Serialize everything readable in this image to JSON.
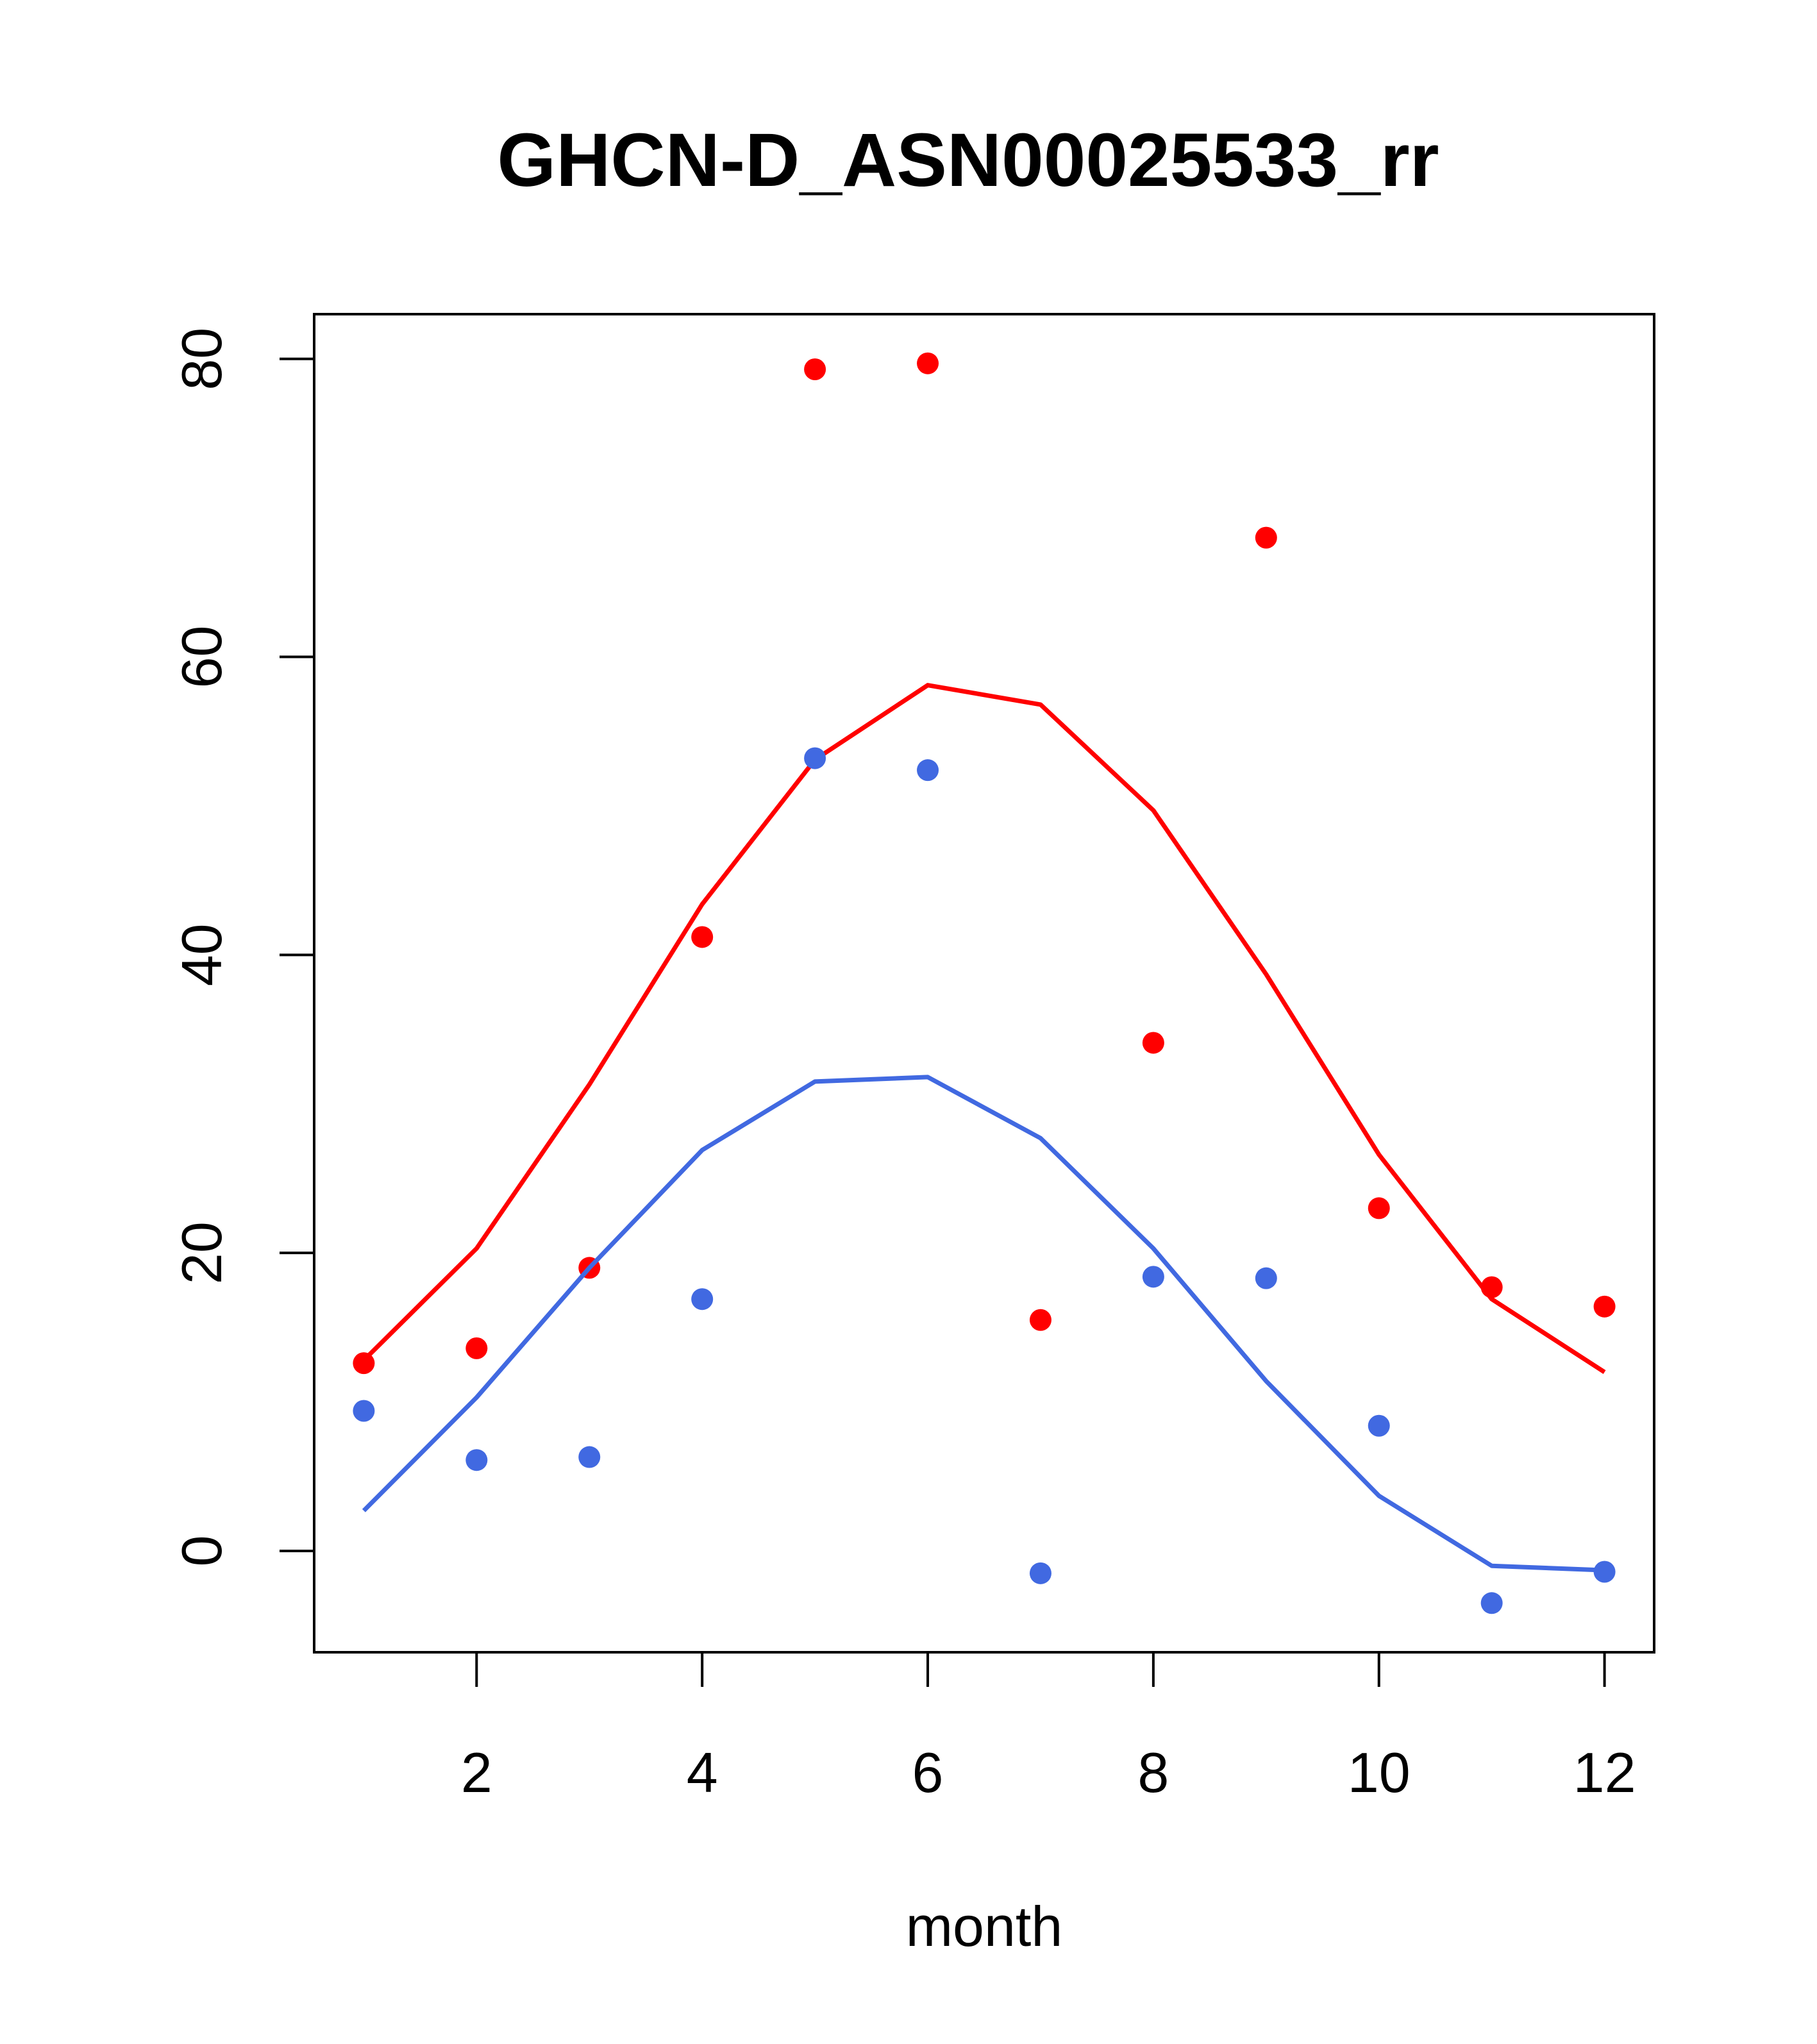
{
  "chart_data": {
    "type": "scatter",
    "title": "GHCN-D_ASN00025533_rr",
    "xlabel": "month",
    "ylabel": "",
    "xlim": [
      0.56,
      12.44
    ],
    "ylim": [
      -6.8,
      83
    ],
    "x_ticks": [
      2,
      4,
      6,
      8,
      10,
      12
    ],
    "y_ticks": [
      0,
      20,
      40,
      60,
      80
    ],
    "grid": false,
    "legend": "none",
    "x": [
      1,
      2,
      3,
      4,
      5,
      6,
      7,
      8,
      9,
      10,
      11,
      12
    ],
    "series": [
      {
        "color": "#ff0000",
        "points": [
          12.6,
          13.6,
          19.0,
          41.2,
          79.3,
          79.7,
          15.5,
          34.1,
          68.0,
          23.0,
          17.7,
          16.4
        ],
        "line": [
          12.8,
          20.3,
          31.3,
          43.4,
          53.1,
          58.1,
          56.8,
          49.7,
          38.7,
          26.6,
          16.9,
          12.0
        ]
      },
      {
        "color": "#4169e1",
        "points": [
          9.4,
          6.1,
          6.3,
          16.9,
          53.2,
          52.4,
          -1.5,
          18.4,
          18.3,
          8.4,
          -3.5,
          -1.4
        ],
        "line": [
          2.7,
          10.3,
          19.0,
          26.9,
          31.5,
          31.8,
          27.7,
          20.3,
          11.4,
          3.7,
          -1.0,
          -1.3
        ]
      }
    ]
  }
}
